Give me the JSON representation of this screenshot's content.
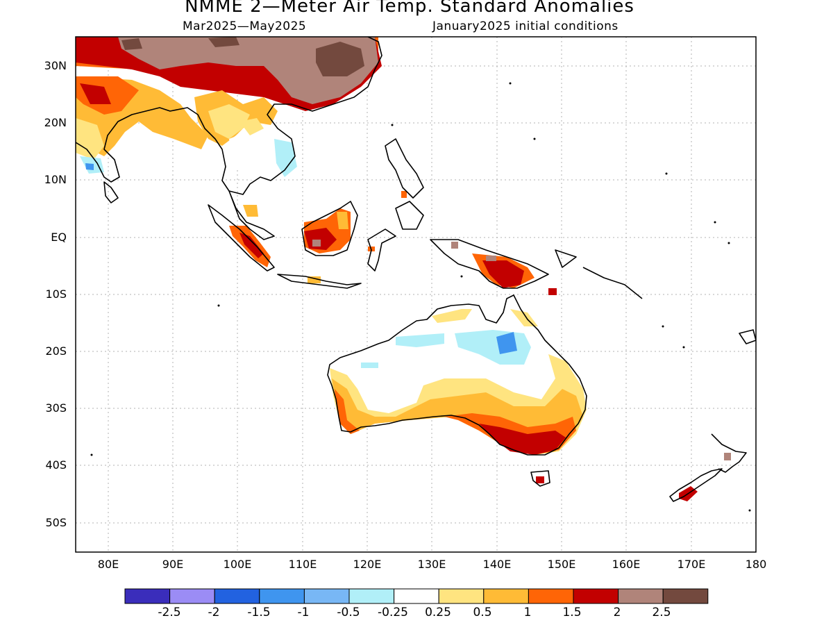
{
  "title": "NMME 2—Meter Air Temp. Standard Anomalies",
  "subtitle_left": "Mar2025—May2025",
  "subtitle_right": "January2025 initial conditions",
  "lat_labels": [
    "30N",
    "20N",
    "10N",
    "EQ",
    "10S",
    "20S",
    "30S",
    "40S",
    "50S"
  ],
  "lon_labels": [
    "80E",
    "90E",
    "100E",
    "110E",
    "120E",
    "130E",
    "140E",
    "150E",
    "160E",
    "170E",
    "180"
  ],
  "lon_range": [
    75,
    180
  ],
  "lat_range": [
    -55,
    35
  ],
  "colorbar": {
    "colors": [
      "#3a2dbb",
      "#9b8cf5",
      "#2262e0",
      "#3f95ef",
      "#78b7f5",
      "#b1eff8",
      "#ffffff",
      "#ffe480",
      "#ffbb36",
      "#ff6506",
      "#c20000",
      "#b0847a",
      "#73493e"
    ],
    "labels": [
      "-2.5",
      "-2",
      "-1.5",
      "-1",
      "-0.5",
      "-0.25",
      "0.25",
      "0.5",
      "1",
      "1.5",
      "2",
      "2.5"
    ]
  }
}
